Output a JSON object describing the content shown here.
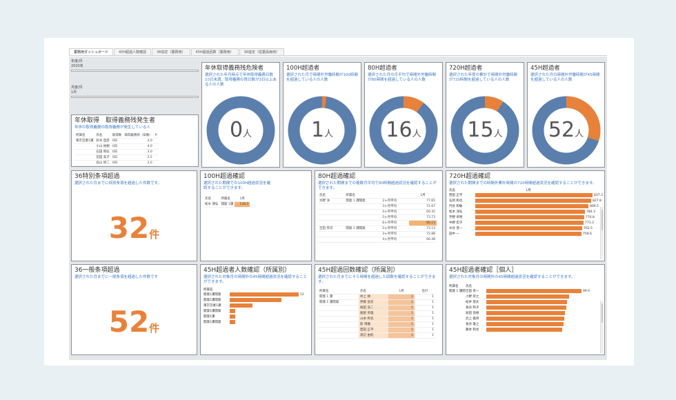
{
  "tabs": [
    "業務用ダッシュボード",
    "45H超過人数確認",
    "36協定（業務用）",
    "45H超過回数（業務用）",
    "36協定（従業員様用）"
  ],
  "filters": {
    "year_label": "年度/月",
    "year_value": "2020年",
    "month_label": "月度/月",
    "month_value": "1月"
  },
  "kyugyo": {
    "title": "年休取得　取得義務残発生者",
    "sub": "年休の取得義務の取得義務が発生している人",
    "headers": [
      "所属名",
      "氏名",
      "取得数",
      "取得義務残（日数）",
      "P"
    ],
    "rows": [
      [
        "東京営業1課",
        "鈴木 直彦",
        "0日",
        "4.0"
      ],
      [
        "",
        "小山 裕樹",
        "0日",
        "4.0"
      ],
      [
        "",
        "石田 和弘",
        "0日",
        "3.0"
      ],
      [
        "",
        "前田 美子",
        "0日",
        "2.5"
      ],
      [
        "",
        "高山 修二",
        "0日",
        "2.0"
      ]
    ]
  },
  "kpis": [
    {
      "title": "年休取得義務残危険者",
      "sub": "選択された年月時点で年休取得義務日数10日未満、取得義務の残日数が3日以上ある人の人数",
      "value": "0",
      "unit": "人",
      "ratio": 0
    },
    {
      "title": "100H超過者",
      "sub": "選択された月で時間外労働時間が100時間を超過している人の人数",
      "value": "1",
      "unit": "人",
      "ratio": 0.02
    },
    {
      "title": "80H超過者",
      "sub": "選択された月の月平均で時間外労働時間が80時間を超過している人の人数",
      "value": "16",
      "unit": "人",
      "ratio": 0.1
    },
    {
      "title": "720H超過者",
      "sub": "選択された年度の累計で時間外労働時間が720時間を超過している人の人数",
      "value": "15",
      "unit": "人",
      "ratio": 0.09
    },
    {
      "title": "45H超過者",
      "sub": "選択された月の時間外労働時間が45時間を超過している人の人数",
      "value": "52",
      "unit": "人",
      "ratio": 0.3
    }
  ],
  "colors": {
    "blue": "#5b7fad",
    "orange": "#e8823a",
    "link": "#3a78c2"
  },
  "tokubetsu": {
    "title": "36特別条項超過",
    "sub": "選択された月までに特別条項を超過した件数です。",
    "value": "32",
    "unit": "件"
  },
  "ippan": {
    "title": "36一般条項超過",
    "sub": "選択された月までに一般条項を超過した件数です",
    "value": "52",
    "unit": "件"
  },
  "h100": {
    "title": "100H超過確認",
    "sub": "選択された期間での100H超過状況を確認することができます。",
    "headers": [
      "氏名",
      "所属名",
      "1月"
    ],
    "row": [
      "松木 博弘",
      "開発 1課",
      "128.5"
    ]
  },
  "h80": {
    "title": "80H超過確認",
    "sub": "選択された期間までの複数月平均で80時間超過状況を確認することができます。",
    "headers": [
      "氏名",
      "所属名",
      "",
      "1月"
    ],
    "rows": [
      [
        "水野 洋",
        "開発 1 課開発",
        "2ヶ月平均",
        "77.65"
      ],
      [
        "",
        "",
        "3ヶ月平均",
        "71.67"
      ],
      [
        "",
        "",
        "4ヶ月平均",
        "69.35"
      ],
      [
        "",
        "",
        "5ヶ月平均",
        "73.73"
      ],
      [
        "",
        "",
        "6ヶ月平均",
        "80.13"
      ],
      [
        "吉田 英司",
        "開発 1 課開発",
        "2ヶ月平均",
        "73.13"
      ],
      [
        "",
        "",
        "3ヶ月平均",
        "72.88"
      ],
      [
        "",
        "",
        "4ヶ月平均",
        "66.48"
      ]
    ],
    "highlight_index": 4
  },
  "h720": {
    "title": "720H超過確認",
    "sub": "選択された期間までの時間外累計時間の720時間超過状況を確認することができます。",
    "headers": [
      "氏名",
      "1月"
    ],
    "rows": [
      {
        "name": "西田 正平",
        "value": "837.3",
        "v": 837.3
      },
      {
        "name": "石岡 和也",
        "value": "827.8",
        "v": 827.8
      },
      {
        "name": "円谷 和敏",
        "value": "809.5",
        "v": 809.5
      },
      {
        "name": "松木 洋弘",
        "value": "784.3",
        "v": 784.3
      },
      {
        "name": "宇野 孝明",
        "value": "776.8",
        "v": 776.8
      },
      {
        "name": "中野 宏子",
        "value": "773.3",
        "v": 773.3
      },
      {
        "name": "水谷 晋一",
        "value": "762.5",
        "v": 762.5
      },
      {
        "name": "田中 一",
        "value": "758.6",
        "v": 758.6
      }
    ]
  },
  "h45dept": {
    "title": "45H超過者人数確認（所属別）",
    "sub": "選択された対象月の時間外の45時間超過状況を確認することができます。",
    "headers": [
      "所属名"
    ],
    "rows": [
      {
        "name": "開発1課開発",
        "v": 12,
        "label": "12"
      },
      {
        "name": "開発1課開発",
        "v": 9,
        "label": ""
      },
      {
        "name": "東京営業1課",
        "v": 4,
        "label": ""
      },
      {
        "name": "開発1課開発",
        "v": 1,
        "label": ""
      },
      {
        "name": "開発1課",
        "v": 1,
        "label": ""
      },
      {
        "name": "開発1課開発",
        "v": 1,
        "label": ""
      }
    ]
  },
  "h45count": {
    "title": "45H超過回数確認（所属別）",
    "sub": "選択された月までに４５時間を超過した回数を確認することができます。",
    "headers": [
      "所属名",
      "氏名",
      "1月",
      "合計"
    ],
    "rows": [
      [
        "開発 1 課",
        "井上 靖",
        "1",
        "1"
      ],
      [
        "開発 1 課開発",
        "伊藤 昌史",
        "1",
        "1"
      ],
      [
        "",
        "植田 浩二",
        "1",
        "1"
      ],
      [
        "",
        "服部 英雄",
        "1",
        "1"
      ],
      [
        "",
        "山本 和也",
        "1",
        "1"
      ],
      [
        "",
        "影 博雅",
        "1",
        "1"
      ],
      [
        "",
        "西田 正平",
        "1",
        "1"
      ],
      [
        "",
        "渡辺 由紀",
        "1",
        "1"
      ]
    ]
  },
  "h45person": {
    "title": "45H超過者確認［個人］",
    "sub": "選択された対象月の時間外の45時間超過状況を確認することができます。",
    "headers": [
      "所属名",
      "氏名"
    ],
    "rows": [
      {
        "dept": "開発 1 課開発",
        "name": "吉田 英一",
        "v": 99.0,
        "label": "99.0"
      },
      {
        "dept": "",
        "name": "小野 崇之",
        "v": 86,
        "label": ""
      },
      {
        "dept": "",
        "name": "松井 悠太",
        "v": 84,
        "label": ""
      },
      {
        "dept": "",
        "name": "長谷 和子",
        "v": 83,
        "label": ""
      },
      {
        "dept": "",
        "name": "坂田 昌樹",
        "v": 82,
        "label": ""
      },
      {
        "dept": "",
        "name": "武上 義男",
        "v": 81,
        "label": ""
      },
      {
        "dept": "",
        "name": "長谷 雄之",
        "v": 80,
        "label": ""
      },
      {
        "dept": "",
        "name": "藤本 和也",
        "v": 79,
        "label": ""
      }
    ]
  }
}
